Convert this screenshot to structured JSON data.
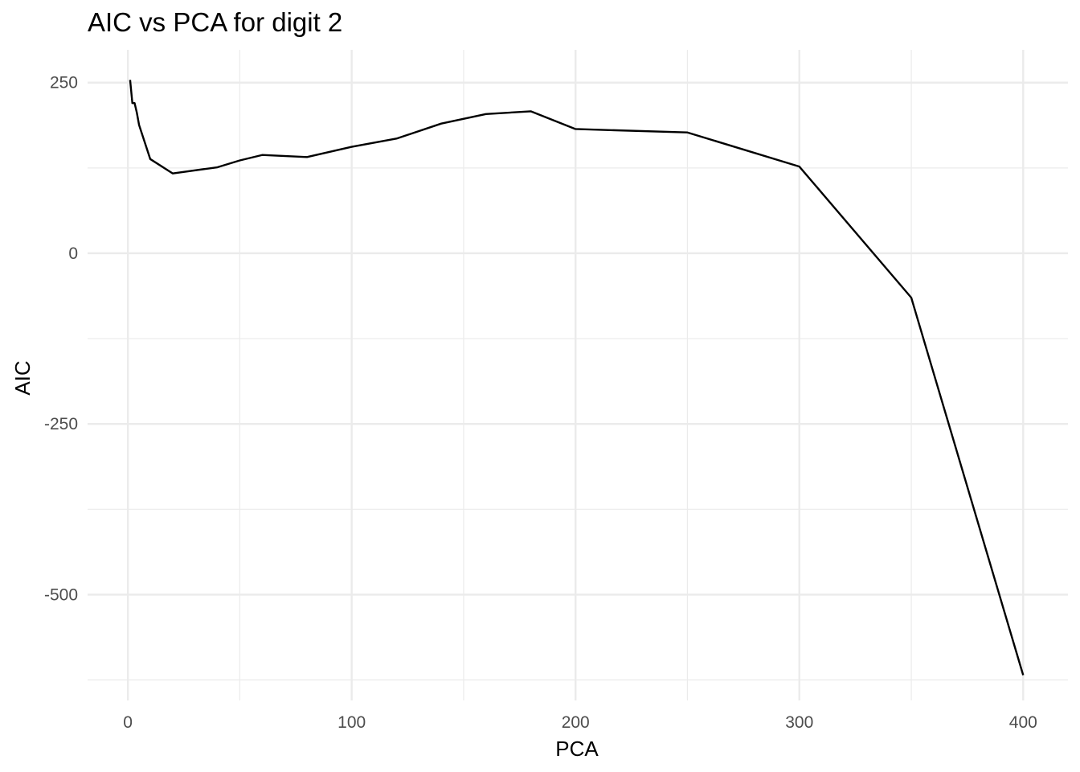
{
  "chart_data": {
    "type": "line",
    "title": "AIC vs PCA for digit 2",
    "xlabel": "PCA",
    "ylabel": "AIC",
    "xlim": [
      -18,
      420
    ],
    "ylim": [
      -655,
      298
    ],
    "x_ticks": [
      0,
      100,
      200,
      300,
      400
    ],
    "y_ticks": [
      250,
      0,
      -250,
      -500
    ],
    "x_tick_labels": [
      "0",
      "100",
      "200",
      "300",
      "400"
    ],
    "y_tick_labels": [
      "250",
      "0",
      "-250",
      "-500"
    ],
    "x_minor_ticks": [
      50,
      150,
      250,
      350
    ],
    "y_minor_ticks": [
      125,
      -125,
      -375,
      -625
    ],
    "grid": true,
    "series": [
      {
        "color": "#000000",
        "x": [
          1,
          2,
          3,
          4,
          5,
          10,
          20,
          40,
          50,
          60,
          80,
          100,
          120,
          140,
          160,
          180,
          200,
          250,
          300,
          350,
          400
        ],
        "y": [
          254,
          220,
          220,
          206,
          188,
          138,
          117,
          126,
          136,
          144,
          141,
          156,
          168,
          190,
          204,
          208,
          182,
          177,
          127,
          -65,
          -618
        ]
      }
    ]
  }
}
